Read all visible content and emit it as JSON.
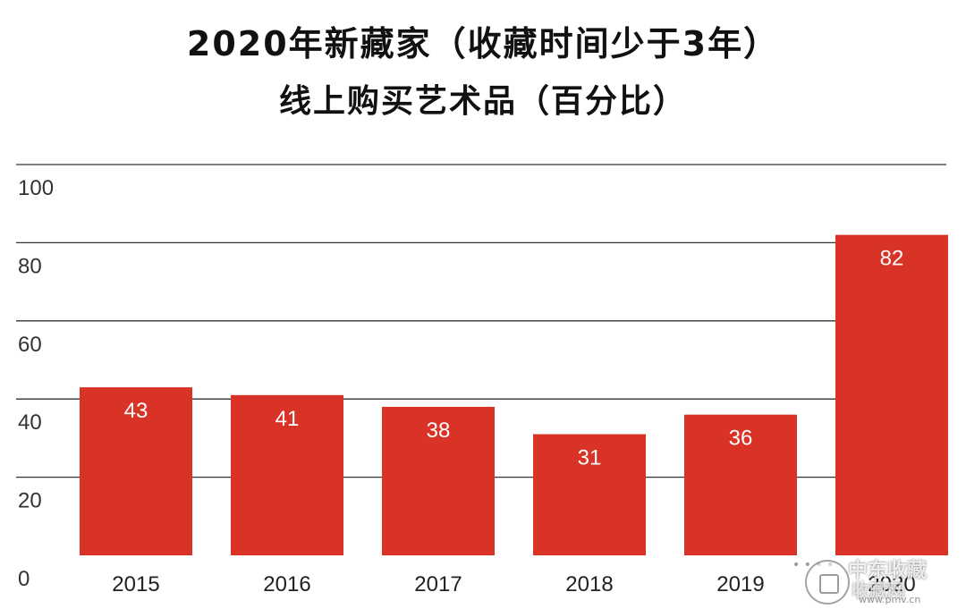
{
  "chart_data": {
    "type": "bar",
    "title": "2020年新藏家（收藏时间少于3年）",
    "subtitle": "线上购买艺术品（百分比）",
    "categories": [
      "2015",
      "2016",
      "2017",
      "2018",
      "2019",
      "2020"
    ],
    "values": [
      43,
      41,
      38,
      31,
      36,
      82
    ],
    "ylim": [
      0,
      100
    ],
    "yticks": [
      0,
      20,
      40,
      60,
      80,
      100
    ],
    "xlabel": "",
    "ylabel": "",
    "grid": true,
    "bar_color": "#d93327",
    "label_color": "#ffffff"
  },
  "watermark": {
    "text": "中东收藏",
    "sub": "收藏网",
    "url": "www.pmv.cn",
    "dots": "• • • •"
  }
}
